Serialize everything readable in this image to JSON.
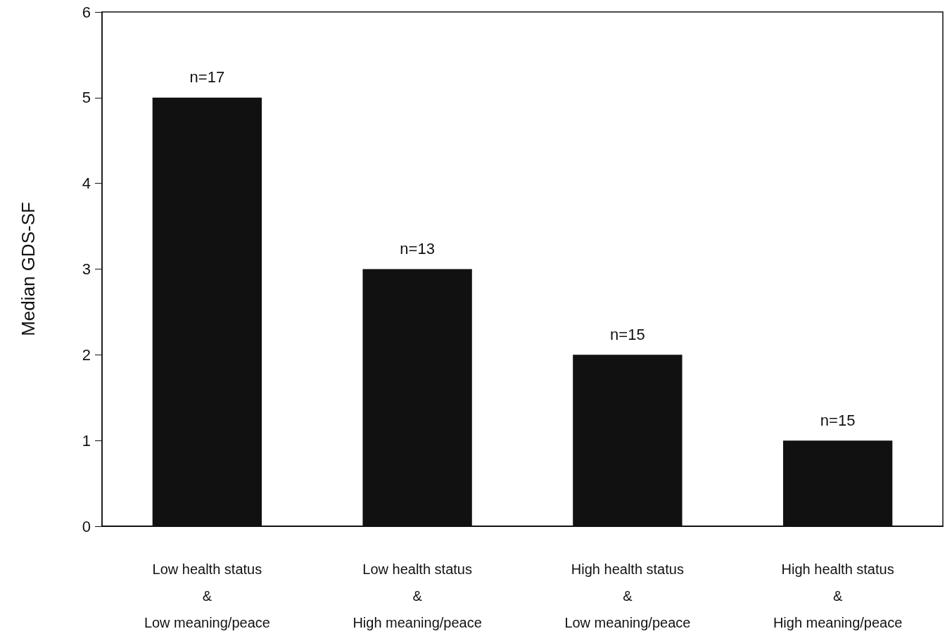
{
  "chart_data": {
    "type": "bar",
    "ylabel": "Median GDS-SF",
    "categories": [
      "Low health status\n&\nLow meaning/peace",
      "Low health status\n&\nHigh meaning/peace",
      "High health status\n&\nLow meaning/peace",
      "High health status\n&\nHigh meaning/peace"
    ],
    "values": [
      5,
      3,
      2,
      1
    ],
    "color": "#111111",
    "annotations": [
      {
        "text": "n=17",
        "x": "Low health status\n&\nLow meaning/peace",
        "y": 5
      },
      {
        "text": "n=13",
        "x": "Low health status\n&\nHigh meaning/peace",
        "y": 3
      },
      {
        "text": "n=15",
        "x": "High health status\n&\nLow meaning/peace",
        "y": 2
      },
      {
        "text": "n=15",
        "x": "High health status\n&\nHigh meaning/peace",
        "y": 1
      }
    ],
    "ylim": [
      0,
      6
    ],
    "yticks": [
      0,
      1,
      2,
      3,
      4,
      5,
      6
    ],
    "grid": false
  }
}
